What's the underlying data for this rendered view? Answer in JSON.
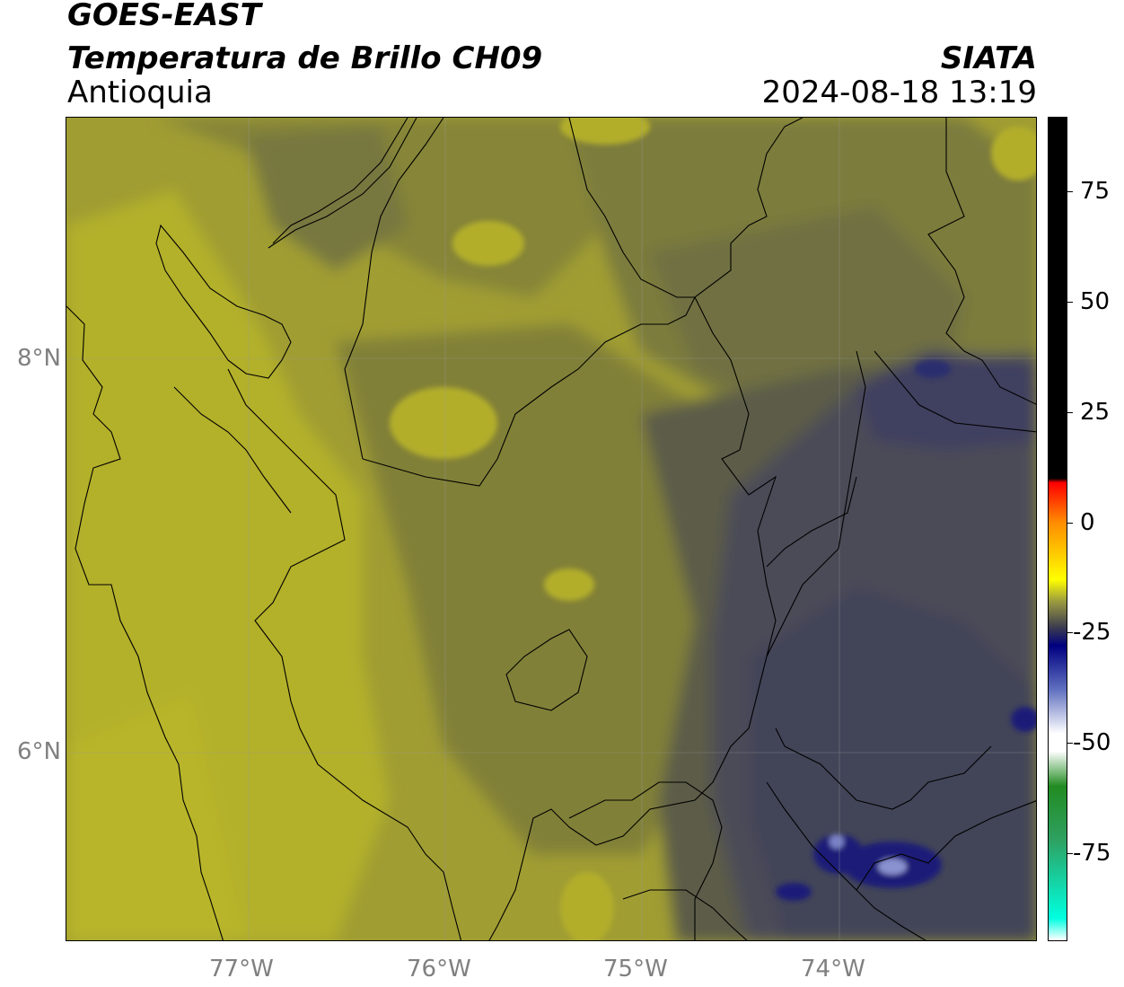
{
  "header": {
    "satellite": "GOES-EAST",
    "product": "Temperatura de Brillo CH09",
    "region": "Antioquia",
    "agency": "SIATA",
    "datetime": "2024-08-18 13:19"
  },
  "axes": {
    "x_ticks": [
      "77°W",
      "76°W",
      "75°W",
      "74°W"
    ],
    "y_ticks": [
      "8°N",
      "6°N"
    ]
  },
  "colorbar": {
    "ticks": [
      "75",
      "50",
      "25",
      "0",
      "-25",
      "-50",
      "-75"
    ],
    "tick_values": [
      75,
      50,
      25,
      0,
      -25,
      -50,
      -75
    ],
    "range": [
      -95,
      92
    ],
    "stops": [
      {
        "v": 92,
        "c": "#000000"
      },
      {
        "v": 10,
        "c": "#000000"
      },
      {
        "v": 9,
        "c": "#ff0000"
      },
      {
        "v": 0,
        "c": "#ff8c00"
      },
      {
        "v": -13,
        "c": "#ffff00"
      },
      {
        "v": -18,
        "c": "#9a9a40"
      },
      {
        "v": -24,
        "c": "#3a3a50"
      },
      {
        "v": -28,
        "c": "#000080"
      },
      {
        "v": -38,
        "c": "#6070c0"
      },
      {
        "v": -48,
        "c": "#ffffff"
      },
      {
        "v": -52,
        "c": "#ffffff"
      },
      {
        "v": -60,
        "c": "#228b22"
      },
      {
        "v": -72,
        "c": "#2ea060"
      },
      {
        "v": -90,
        "c": "#00ffe0"
      },
      {
        "v": -95,
        "c": "#ffffff"
      }
    ]
  },
  "colors": {
    "bright_yellow": "#b7b42a",
    "olive": "#8c8a3a",
    "dark_olive": "#6a6945",
    "slate": "#4b4c58",
    "navy": "#1c1f78"
  }
}
